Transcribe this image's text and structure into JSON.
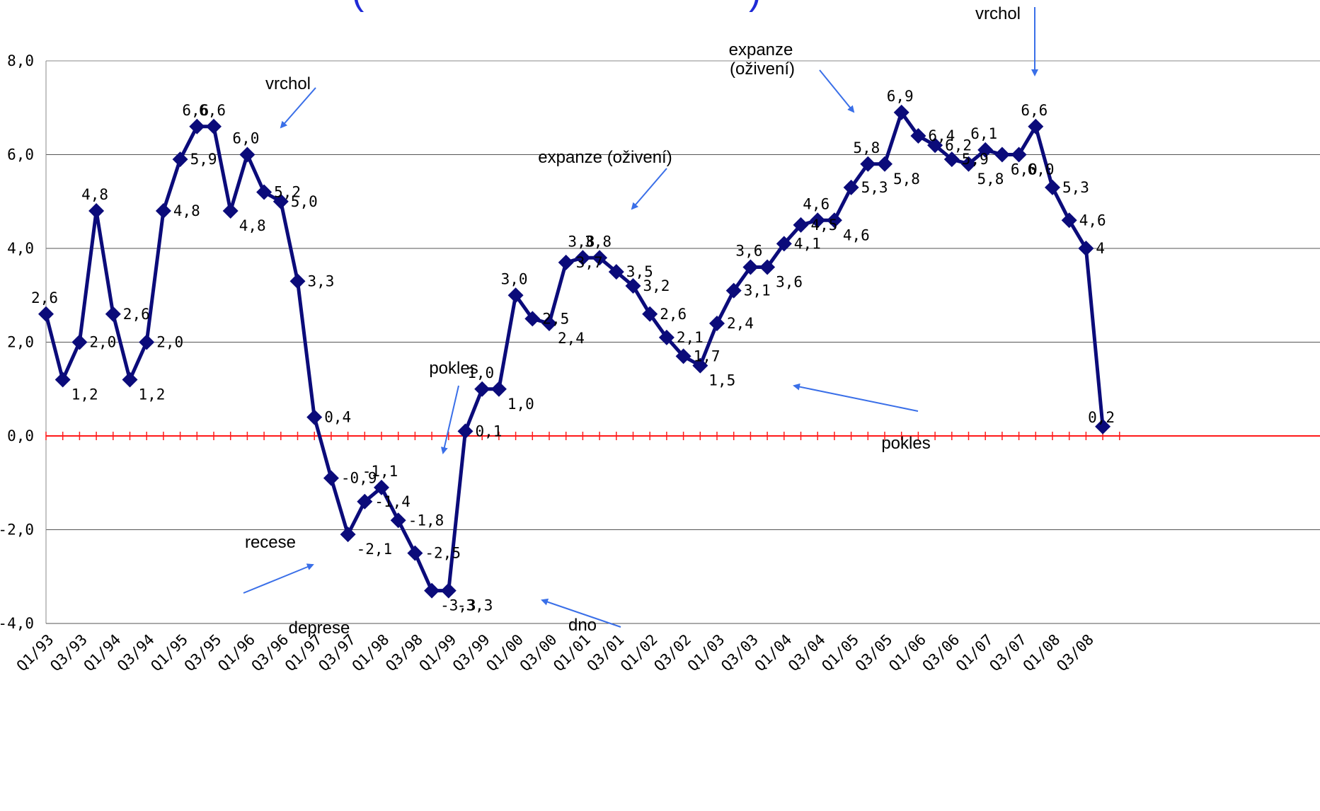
{
  "chart_data": {
    "type": "line",
    "title_fragment_left": "(",
    "title_fragment_right": ")",
    "ylim": [
      -4,
      8
    ],
    "yticks": [
      "8,0",
      "6,0",
      "4,0",
      "2,0",
      "0,0",
      "-2,0",
      "-4,0"
    ],
    "ytick_values": [
      8,
      6,
      4,
      2,
      0,
      -2,
      -4
    ],
    "grid": true,
    "zero_line_color": "#ff1a1a",
    "line_color": "#0b0b7a",
    "arrow_color": "#3a6fe8",
    "x_labels": [
      "Q1/93",
      "Q3/93",
      "Q1/94",
      "Q3/94",
      "Q1/95",
      "Q3/95",
      "Q1/96",
      "Q3/96",
      "Q1/97",
      "Q3/97",
      "Q1/98",
      "Q3/98",
      "Q1/99",
      "Q3/99",
      "Q1/00",
      "Q3/00",
      "Q1/01",
      "Q3/01",
      "Q1/02",
      "Q3/02",
      "Q1/03",
      "Q3/03",
      "Q1/04",
      "Q3/04",
      "Q1/05",
      "Q3/05",
      "Q1/06",
      "Q3/06",
      "Q1/07",
      "Q3/07",
      "Q1/08",
      "Q3/08"
    ],
    "values": [
      2.6,
      1.2,
      2.0,
      4.8,
      2.6,
      1.2,
      2.0,
      4.8,
      5.9,
      6.6,
      6.6,
      4.8,
      6.0,
      5.2,
      5.0,
      3.3,
      0.4,
      -0.9,
      -2.1,
      -1.4,
      -1.1,
      -1.8,
      -2.5,
      -3.3,
      -3.3,
      0.1,
      1.0,
      1.0,
      3.0,
      2.5,
      2.4,
      3.7,
      3.8,
      3.8,
      3.5,
      3.2,
      2.6,
      2.1,
      1.7,
      1.5,
      2.4,
      3.1,
      3.6,
      3.6,
      4.1,
      4.5,
      4.6,
      4.6,
      5.3,
      5.8,
      5.8,
      6.9,
      6.4,
      6.2,
      5.9,
      5.8,
      6.1,
      6.0,
      6.0,
      6.6,
      5.3,
      4.6,
      4.0,
      0.2
    ],
    "value_labels": [
      "2,6",
      "1,2",
      "2,0",
      "4,8",
      "2,6",
      "1,2",
      "2,0",
      "4,8",
      "5,9",
      "6,6",
      "6,6",
      "4,8",
      "6,0",
      "5,2",
      "5,0",
      "3,3",
      "0,4",
      "-0,9",
      "-2,1",
      "-1,4",
      "-1,1",
      "-1,8",
      "-2,5",
      "-3,3",
      "-3,3",
      "0,1",
      "1,0",
      "1,0",
      "3,0",
      "2,5",
      "2,4",
      "3,7",
      "3,8",
      "3,8",
      "3,5",
      "3,2",
      "2,6",
      "2,1",
      "1,7",
      "1,5",
      "2,4",
      "3,1",
      "3,6",
      "3,6",
      "4,1",
      "4,5",
      "4,6",
      "4,6",
      "5,3",
      "5,8",
      "5,8",
      "6,9",
      "6,4",
      "6,2",
      "5,9",
      "5,8",
      "6,1",
      "6,0",
      "6,0",
      "6,6",
      "5,3",
      "4,6",
      "4",
      "0,2"
    ],
    "annotations": [
      "vrchol",
      "expanze",
      "(oživení)",
      "vrchol",
      "expanze (oživení)",
      "pokles",
      "pokles",
      "recese",
      "deprese",
      "dno"
    ]
  }
}
